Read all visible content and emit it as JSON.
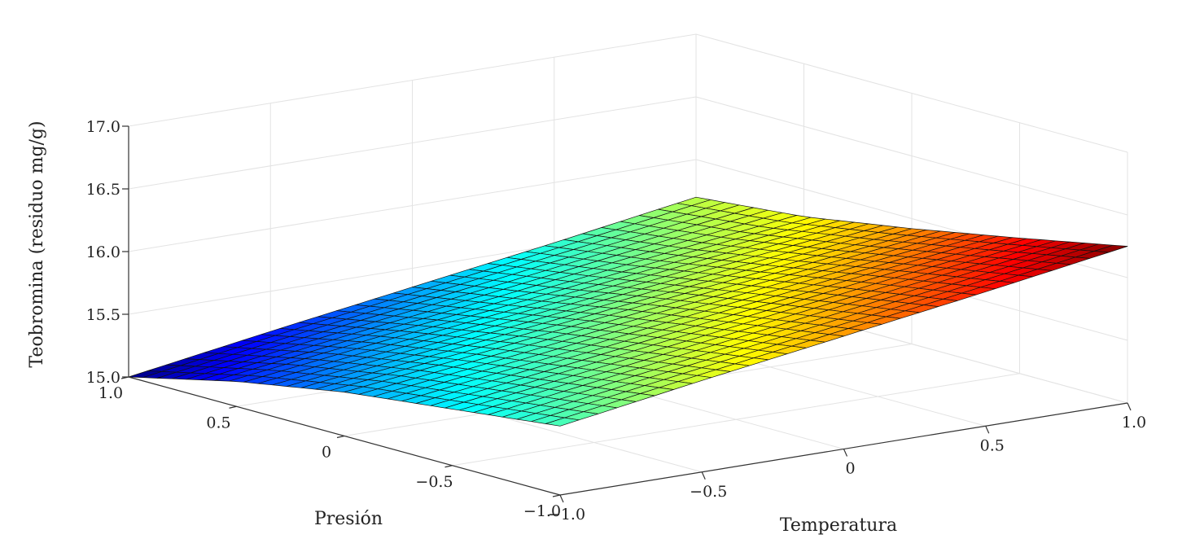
{
  "chart_data": {
    "type": "surface",
    "title": "",
    "xlabel": "Temperatura",
    "ylabel": "Presión",
    "zlabel": "Teobromina (residuo mg/g)",
    "xlim": [
      -1.0,
      1.0
    ],
    "ylim": [
      -1.0,
      1.0
    ],
    "zlim": [
      15.0,
      17.0
    ],
    "x_ticks": [
      "−1.0",
      "−0.5",
      "0",
      "0.5",
      "1.0"
    ],
    "y_ticks": [
      "−1.0",
      "−0.5",
      "0",
      "0.5",
      "1.0"
    ],
    "z_ticks": [
      "15.0",
      "15.5",
      "16.0",
      "16.5",
      "17.0"
    ],
    "x": [
      -1.0,
      -0.5,
      0.0,
      0.5,
      1.0
    ],
    "y": [
      -1.0,
      -0.5,
      0.0,
      0.5,
      1.0
    ],
    "z": [
      [
        15.55,
        15.73,
        15.9,
        16.07,
        16.25
      ],
      [
        15.45,
        15.61,
        15.77,
        15.93,
        16.08
      ],
      [
        15.35,
        15.49,
        15.64,
        15.78,
        15.92
      ],
      [
        15.2,
        15.35,
        15.49,
        15.64,
        15.78
      ],
      [
        15.0,
        15.18,
        15.35,
        15.52,
        15.7
      ]
    ],
    "grid": true,
    "colormap": "jet",
    "legend": "none"
  }
}
